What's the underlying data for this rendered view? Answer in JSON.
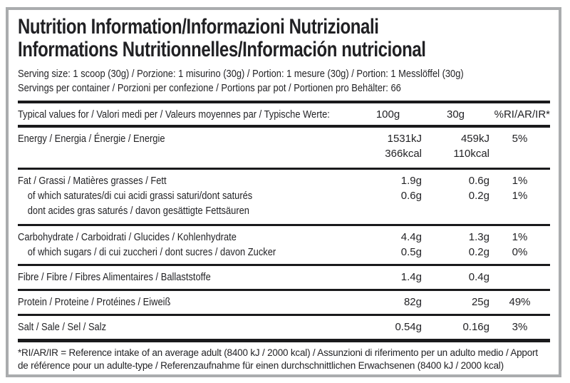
{
  "title": {
    "line1": "Nutrition Information/Informazioni Nutrizionali",
    "line2": "Informations Nutritionnelles/Información nutricional"
  },
  "serving": {
    "size": "Serving size: 1 scoop (30g) / Porzione: 1 misurino (30g) / Portion: 1 mesure (30g) / Portion: 1 Messlöffel (30g)",
    "per_container": "Servings per container / Porzioni per confezione / Portions par pot / Portionen pro Behälter: 66"
  },
  "table": {
    "header": {
      "label": "Typical values for / Valori medi per / Valeurs moyennes par / Typische Werte:",
      "col_100g": "100g",
      "col_30g": "30g",
      "col_ri": "%RI/AR/IR*"
    },
    "rows": [
      {
        "name": "energy",
        "lines": [
          {
            "label": "Energy / Energia / Énergie / Energie",
            "v100": "1531kJ",
            "v30": "459kJ",
            "ri": "5%"
          },
          {
            "label": "",
            "v100": "366kcal",
            "v30": "110kcal",
            "ri": ""
          }
        ]
      },
      {
        "name": "fat",
        "lines": [
          {
            "label": "Fat / Grassi / Matières grasses / Fett",
            "v100": "1.9g",
            "v30": "0.6g",
            "ri": "1%"
          },
          {
            "label": "of which saturates/di cui acidi grassi saturi/dont saturés",
            "v100": "0.6g",
            "v30": "0.2g",
            "ri": "1%"
          },
          {
            "label": "dont acides gras saturés / davon gesättigte Fettsäuren",
            "v100": "",
            "v30": "",
            "ri": ""
          }
        ]
      },
      {
        "name": "carbohydrate",
        "lines": [
          {
            "label": "Carbohydrate / Carboidrati / Glucides / Kohlenhydrate",
            "v100": "4.4g",
            "v30": "1.3g",
            "ri": "1%"
          },
          {
            "label": "of which sugars / di cui zuccheri / dont sucres / davon Zucker",
            "v100": "0.5g",
            "v30": "0.2g",
            "ri": "0%"
          }
        ]
      },
      {
        "name": "fibre",
        "lines": [
          {
            "label": "Fibre / Fibre / Fibres Alimentaires / Ballaststoffe",
            "v100": "1.4g",
            "v30": "0.4g",
            "ri": ""
          }
        ]
      },
      {
        "name": "protein",
        "lines": [
          {
            "label": "Protein / Proteine / Protéines / Eiweiß",
            "v100": "82g",
            "v30": "25g",
            "ri": "49%"
          }
        ]
      },
      {
        "name": "salt",
        "lines": [
          {
            "label": "Salt / Sale / Sel / Salz",
            "v100": "0.54g",
            "v30": "0.16g",
            "ri": "3%"
          }
        ]
      }
    ]
  },
  "footnote": "*RI/AR/IR = Reference intake of an average adult (8400 kJ / 2000 kcal) / Assunzioni di riferimento per un adulto medio / Apport de référence pour un adulte-type / Referenzaufnahme für einen durchschnittlichen Erwachsenen (8400 kJ / 2000 kcal)",
  "colors": {
    "text": "#232326",
    "rule": "#1a1a1c",
    "border": "#aaacae",
    "background": "#ffffff"
  }
}
